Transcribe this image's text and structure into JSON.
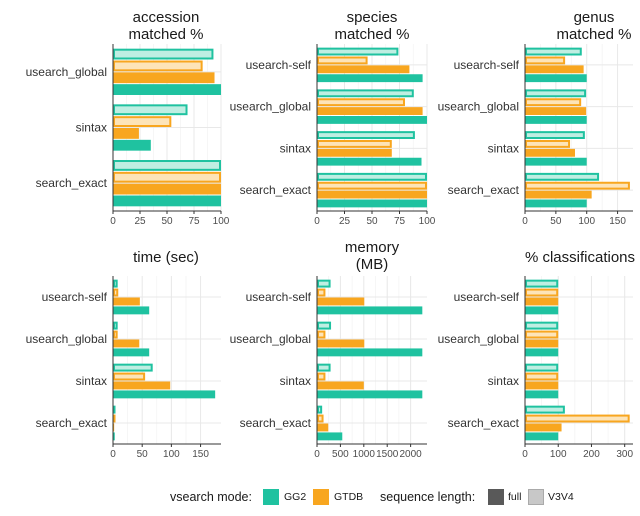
{
  "colors": {
    "GG2": "#1fc2a0",
    "GTDB": "#f8a61f",
    "full_swatch": "#595959",
    "V3V4_swatch": "#c8c8c8"
  },
  "legend": {
    "mode_title": "vsearch mode:",
    "modes": [
      "GG2",
      "GTDB"
    ],
    "length_title": "sequence length:",
    "lengths": [
      "full",
      "V3V4"
    ]
  },
  "chart_data": [
    {
      "type": "bar",
      "title": "accession matched %",
      "title_lines": [
        "accession",
        "matched %"
      ],
      "categories": [
        "usearch_global",
        "sintax",
        "search_exact"
      ],
      "xlim": [
        0,
        100
      ],
      "xticks": [
        "0",
        "25",
        "50",
        "75",
        "100"
      ],
      "series": [
        {
          "name": "GG2 V3V4",
          "values": [
            93,
            69,
            100
          ]
        },
        {
          "name": "GTDB V3V4",
          "values": [
            83,
            54,
            100
          ]
        },
        {
          "name": "GTDB full",
          "values": [
            94,
            24,
            100
          ]
        },
        {
          "name": "GG2 full",
          "values": [
            100,
            35,
            100
          ]
        }
      ]
    },
    {
      "type": "bar",
      "title": "species matched %",
      "title_lines": [
        "species",
        "matched %"
      ],
      "categories": [
        "usearch-self",
        "usearch_global",
        "sintax",
        "search_exact"
      ],
      "xlim": [
        0,
        100
      ],
      "xticks": [
        "0",
        "25",
        "50",
        "75",
        "100"
      ],
      "series": [
        {
          "name": "GG2 V3V4",
          "values": [
            74,
            88,
            89,
            100
          ]
        },
        {
          "name": "GTDB V3V4",
          "values": [
            46,
            80,
            68,
            100
          ]
        },
        {
          "name": "GTDB full",
          "values": [
            84,
            96,
            68,
            100
          ]
        },
        {
          "name": "GG2 full",
          "values": [
            96,
            100,
            95,
            100
          ]
        }
      ]
    },
    {
      "type": "bar",
      "title": "genus matched %",
      "title_lines": [
        "genus",
        "matched %"
      ],
      "categories": [
        "usearch-self",
        "usearch_global",
        "sintax",
        "search_exact"
      ],
      "xlim": [
        0,
        175
      ],
      "xticks": [
        "0",
        "50",
        "100",
        "150"
      ],
      "series": [
        {
          "name": "GG2 V3V4",
          "values": [
            92,
            99,
            97,
            120
          ]
        },
        {
          "name": "GTDB V3V4",
          "values": [
            65,
            91,
            73,
            170
          ]
        },
        {
          "name": "GTDB full",
          "values": [
            95,
            99,
            81,
            108
          ]
        },
        {
          "name": "GG2 full",
          "values": [
            100,
            100,
            100,
            100
          ]
        }
      ]
    },
    {
      "type": "bar",
      "title": "time (sec)",
      "title_lines": [
        "time (sec)"
      ],
      "categories": [
        "usearch-self",
        "usearch_global",
        "sintax",
        "search_exact"
      ],
      "xlim": [
        0,
        185
      ],
      "xticks": [
        "0",
        "50",
        "100",
        "150"
      ],
      "series": [
        {
          "name": "GG2 V3V4",
          "values": [
            8,
            8,
            68,
            2
          ]
        },
        {
          "name": "GTDB V3V4",
          "values": [
            9,
            8,
            55,
            2
          ]
        },
        {
          "name": "GTDB full",
          "values": [
            46,
            45,
            98,
            2
          ]
        },
        {
          "name": "GG2 full",
          "values": [
            62,
            62,
            175,
            3
          ]
        }
      ]
    },
    {
      "type": "bar",
      "title": "memory (MB)",
      "title_lines": [
        "memory",
        "(MB)"
      ],
      "categories": [
        "usearch-self",
        "usearch_global",
        "sintax",
        "search_exact"
      ],
      "xlim": [
        0,
        2350
      ],
      "xticks": [
        "0",
        "500",
        "1000",
        "1500",
        "2000"
      ],
      "series": [
        {
          "name": "GG2 V3V4",
          "values": [
            290,
            300,
            290,
            110
          ]
        },
        {
          "name": "GTDB V3V4",
          "values": [
            180,
            180,
            180,
            140
          ]
        },
        {
          "name": "GTDB full",
          "values": [
            1010,
            1010,
            1000,
            240
          ]
        },
        {
          "name": "GG2 full",
          "values": [
            2250,
            2250,
            2250,
            540
          ]
        }
      ]
    },
    {
      "type": "bar",
      "title": "% classifications",
      "title_lines": [
        "% classifications"
      ],
      "categories": [
        "usearch-self",
        "usearch_global",
        "sintax",
        "search_exact"
      ],
      "xlim": [
        0,
        325
      ],
      "xticks": [
        "0",
        "100",
        "200",
        "300"
      ],
      "series": [
        {
          "name": "GG2 V3V4",
          "values": [
            100,
            100,
            100,
            120
          ]
        },
        {
          "name": "GTDB V3V4",
          "values": [
            100,
            100,
            100,
            315
          ]
        },
        {
          "name": "GTDB full",
          "values": [
            100,
            100,
            100,
            110
          ]
        },
        {
          "name": "GG2 full",
          "values": [
            100,
            100,
            100,
            100
          ]
        }
      ]
    }
  ]
}
